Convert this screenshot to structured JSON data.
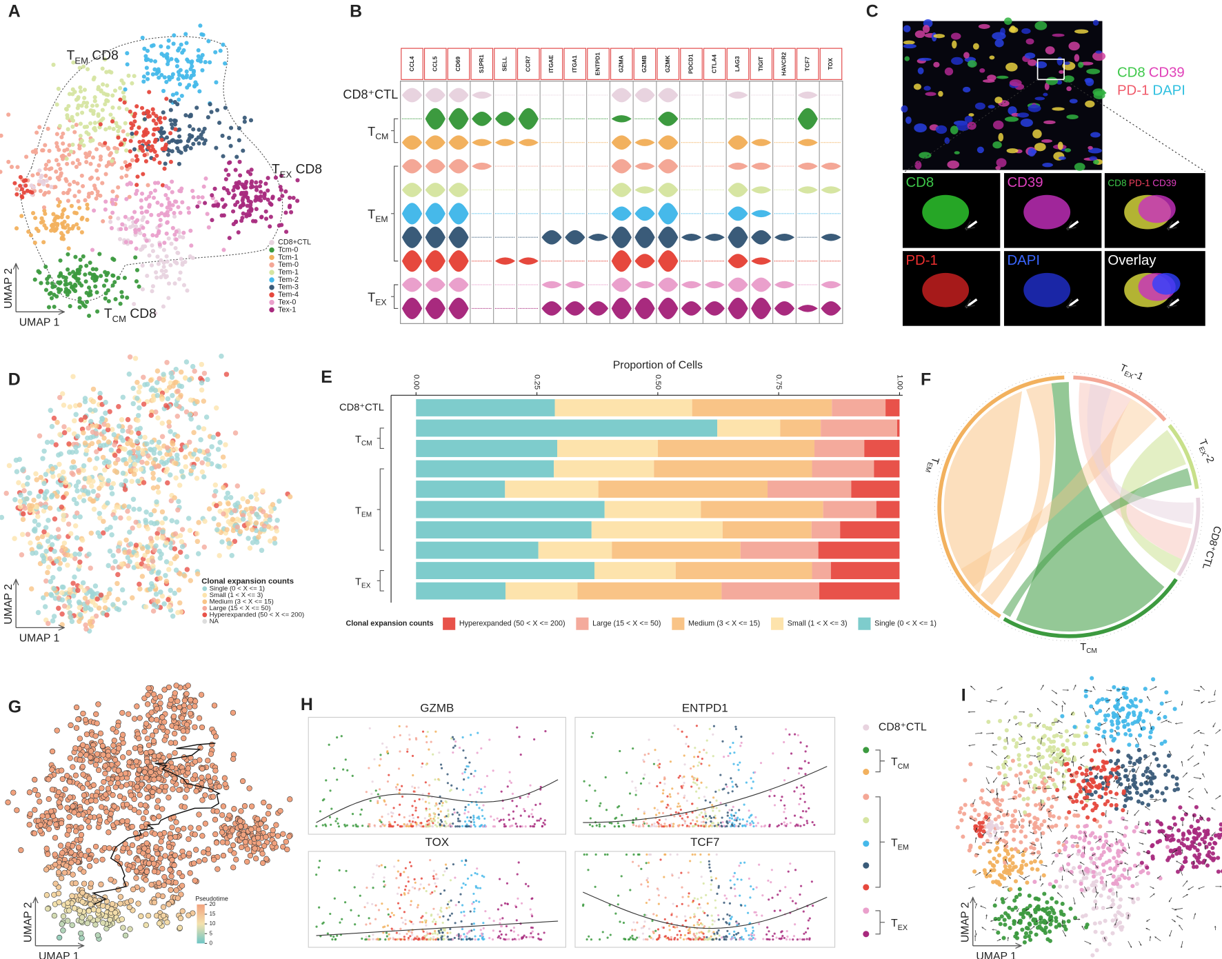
{
  "panels": [
    "A",
    "B",
    "C",
    "D",
    "E",
    "F",
    "G",
    "H",
    "I"
  ],
  "a": {
    "annotations": [
      {
        "main": "T",
        "sub": "EM",
        "rest": " CD8"
      },
      {
        "main": "T",
        "sub": "EX",
        "rest": " CD8"
      },
      {
        "main": "T",
        "sub": "CM",
        "rest": " CD8"
      }
    ],
    "x_label": "UMAP 1",
    "y_label": "UMAP 2",
    "legend": [
      {
        "name": "CD8+CTL",
        "color": "#e8d3df"
      },
      {
        "name": "Tcm-0",
        "color": "#3c9a3f"
      },
      {
        "name": "Tcm-1",
        "color": "#f2b15e"
      },
      {
        "name": "Tem-0",
        "color": "#f4a796"
      },
      {
        "name": "Tem-1",
        "color": "#d6e5a2"
      },
      {
        "name": "Tem-2",
        "color": "#46b9ea"
      },
      {
        "name": "Tem-3",
        "color": "#3a5b79"
      },
      {
        "name": "Tem-4",
        "color": "#e6483d"
      },
      {
        "name": "Tex-0",
        "color": "#eaa0cc"
      },
      {
        "name": "Tex-1",
        "color": "#a82a7e"
      }
    ]
  },
  "b": {
    "genes": [
      "CCL4",
      "CCL5",
      "CD69",
      "S1PR1",
      "SELL",
      "CCR7",
      "ITGAE",
      "ITGA1",
      "ENTPD1",
      "GZMA",
      "GZMB",
      "GZMK",
      "PDCD1",
      "CTLA4",
      "LAG3",
      "TIGIT",
      "HAVCR2",
      "TCF7",
      "TOX"
    ],
    "top_row": "CD8⁺CTL",
    "groups": [
      {
        "main": "T",
        "sub": "CM"
      },
      {
        "main": "T",
        "sub": "EM"
      },
      {
        "main": "T",
        "sub": "EX"
      }
    ],
    "expression": [
      [
        2,
        2,
        2,
        1,
        0,
        0,
        0,
        0,
        0,
        2,
        2,
        2,
        0,
        0,
        1,
        0,
        0,
        1,
        0
      ],
      [
        0,
        3,
        3,
        2,
        2,
        3,
        0,
        0,
        0,
        1,
        0,
        2,
        0,
        0,
        0,
        0,
        0,
        3,
        0
      ],
      [
        2,
        2,
        2,
        1,
        1,
        1,
        0,
        0,
        0,
        2,
        1,
        2,
        0,
        0,
        2,
        1,
        0,
        1,
        0
      ],
      [
        2,
        2,
        2,
        1,
        0,
        0,
        0,
        0,
        0,
        2,
        1,
        2,
        0,
        0,
        1,
        1,
        0,
        1,
        1
      ],
      [
        2,
        2,
        2,
        0,
        0,
        0,
        0,
        0,
        0,
        2,
        1,
        2,
        0,
        0,
        2,
        1,
        0,
        1,
        1
      ],
      [
        3,
        3,
        3,
        0,
        0,
        0,
        0,
        0,
        0,
        2,
        2,
        3,
        0,
        0,
        2,
        1,
        0,
        0,
        0
      ],
      [
        3,
        3,
        3,
        0,
        0,
        0,
        2,
        2,
        1,
        3,
        3,
        3,
        1,
        1,
        3,
        2,
        1,
        0,
        1
      ],
      [
        3,
        3,
        3,
        0,
        1,
        1,
        0,
        0,
        0,
        3,
        2,
        3,
        0,
        0,
        2,
        1,
        0,
        0,
        0
      ],
      [
        2,
        2,
        2,
        0,
        0,
        0,
        1,
        1,
        0,
        2,
        1,
        2,
        1,
        1,
        2,
        2,
        1,
        0,
        1
      ],
      [
        3,
        3,
        3,
        0,
        0,
        0,
        2,
        2,
        2,
        3,
        3,
        3,
        2,
        2,
        3,
        3,
        2,
        1,
        2
      ]
    ]
  },
  "c": {
    "legend": [
      [
        {
          "text": "CD8",
          "color": "#3ec84a"
        },
        {
          "text": "CD39",
          "color": "#e040b8"
        }
      ],
      [
        {
          "text": "PD-1",
          "color": "#f05a6a"
        },
        {
          "text": "DAPI",
          "color": "#30c0e0"
        }
      ]
    ],
    "tiles": [
      [
        {
          "text": "CD8",
          "color": "#3ec84a"
        }
      ],
      [
        {
          "text": "CD39",
          "color": "#e040c0"
        }
      ],
      [
        {
          "text": "CD8",
          "color": "#3ec84a"
        },
        {
          "text": "PD-1",
          "color": "#f04060"
        },
        {
          "text": "CD39",
          "color": "#e040c0"
        }
      ],
      [
        {
          "text": "PD-1",
          "color": "#f03030"
        }
      ],
      [
        {
          "text": "DAPI",
          "color": "#3a66ff"
        }
      ],
      [
        {
          "text": "Overlay",
          "color": "#ffffff"
        }
      ]
    ]
  },
  "d": {
    "legend_title": "Clonal expansion counts",
    "legend": [
      {
        "name": "Single (0 < X <= 1)",
        "color": "#9fd6d6"
      },
      {
        "name": "Small (1 < X <= 3)",
        "color": "#fde3ac"
      },
      {
        "name": "Medium (3 < X <= 15)",
        "color": "#f9c487"
      },
      {
        "name": "Large (15 < X <= 50)",
        "color": "#f4aa9c"
      },
      {
        "name": "Hyperexpanded (50 < X <= 200)",
        "color": "#e8524a"
      },
      {
        "name": "NA",
        "color": "#dddddd"
      }
    ],
    "x_label": "UMAP 1",
    "y_label": "UMAP 2"
  },
  "e": {
    "type": "bar",
    "orientation": "horizontal",
    "stacked": true,
    "title": "Proportion of Cells",
    "categories": [
      "CD8⁺CTL",
      null,
      null,
      null,
      null,
      null,
      null,
      null,
      null,
      null
    ],
    "groups": [
      {
        "main": "T",
        "sub": "CM"
      },
      {
        "main": "T",
        "sub": "EM"
      },
      {
        "main": "T",
        "sub": "EX"
      }
    ],
    "xlim": [
      0,
      1
    ],
    "xticks": [
      {
        "value": 0,
        "label": "0.00"
      },
      {
        "value": 0.25,
        "label": "0.25"
      },
      {
        "value": 0.5,
        "label": "0.50"
      },
      {
        "value": 0.75,
        "label": "0.75"
      },
      {
        "value": 1,
        "label": "1.00"
      }
    ],
    "legend_title": "Clonal expansion counts",
    "series": [
      {
        "name": "Single (0 < X <= 1)",
        "color": "#7ecccc",
        "values": [
          0.287,
          0.623,
          0.292,
          0.285,
          0.184,
          0.39,
          0.363,
          0.253,
          0.369,
          0.185
        ]
      },
      {
        "name": "Small (1 < X <= 3)",
        "color": "#fde3ac",
        "values": [
          0.284,
          0.13,
          0.208,
          0.207,
          0.193,
          0.199,
          0.271,
          0.152,
          0.168,
          0.149
        ]
      },
      {
        "name": "Medium (3 < X <= 15)",
        "color": "#f9c487",
        "values": [
          0.289,
          0.084,
          0.324,
          0.327,
          0.35,
          0.253,
          0.184,
          0.266,
          0.282,
          0.298
        ]
      },
      {
        "name": "Large (15 < X <= 50)",
        "color": "#f4aa9c",
        "values": [
          0.111,
          0.158,
          0.103,
          0.128,
          0.173,
          0.11,
          0.059,
          0.161,
          0.039,
          0.202
        ]
      },
      {
        "name": "Hyperexpanded (50 < X <= 200)",
        "color": "#e8524a",
        "values": [
          0.029,
          0.005,
          0.073,
          0.053,
          0.1,
          0.048,
          0.123,
          0.168,
          0.142,
          0.166
        ]
      }
    ]
  },
  "f": {
    "labels": [
      {
        "main": "T",
        "sub": "EX",
        "rest": "-1"
      },
      {
        "main": "T",
        "sub": "EX",
        "rest": "-2"
      },
      "CD8⁺CTL",
      {
        "main": "T",
        "sub": "CM"
      },
      {
        "main": "T",
        "sub": "EM"
      }
    ]
  },
  "g": {
    "legend_title": "Pseudotime",
    "ticks": [
      0,
      5,
      10,
      15,
      20
    ],
    "colorscale": [
      "#6ec5c5",
      "#f3e2ad",
      "#f1a27e"
    ],
    "x_label": "UMAP 1",
    "y_label": "UMAP 2"
  },
  "h": {
    "titles": [
      "GZMB",
      "ENTPD1",
      "TOX",
      "TCF7"
    ],
    "legend_top": "CD8⁺CTL",
    "legend_groups": [
      {
        "main": "T",
        "sub": "CM"
      },
      {
        "main": "T",
        "sub": "EM"
      },
      {
        "main": "T",
        "sub": "EX"
      }
    ]
  },
  "i": {
    "x_label": "UMAP 1",
    "y_label": "UMAP 2"
  }
}
